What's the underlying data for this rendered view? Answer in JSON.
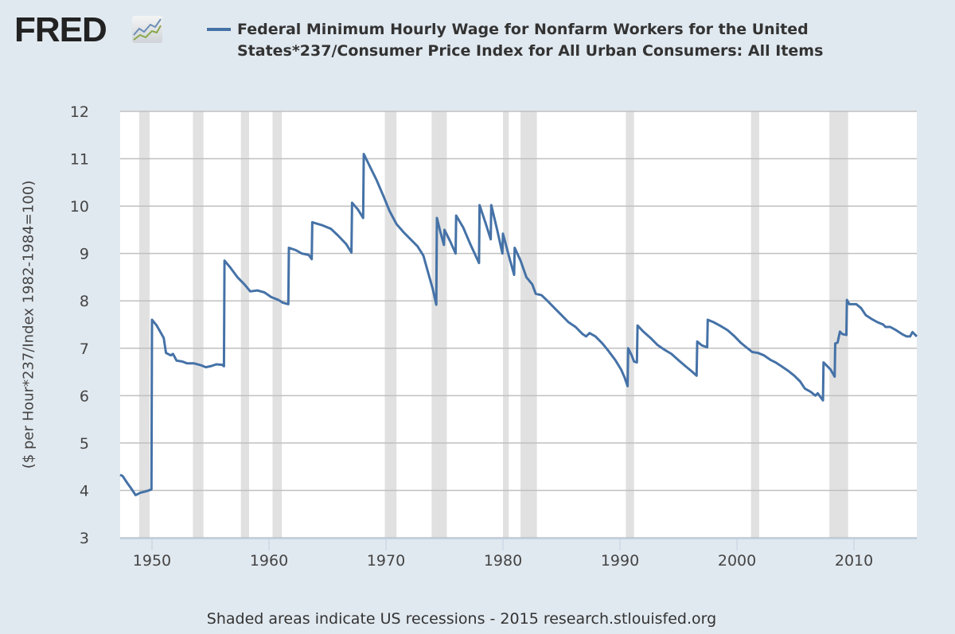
{
  "header": {
    "logo_text": "FRED",
    "title": "Federal Minimum Hourly Wage for Nonfarm Workers for the United States*237/Consumer Price Index for All Urban Consumers: All Items"
  },
  "footer": "Shaded areas indicate US recessions - 2015 research.stlouisfed.org",
  "colors": {
    "line": "#4572a7",
    "recession": "#e1e1e1",
    "grid": "#c0c0c0",
    "background": "#e1e9f0"
  },
  "chart_data": {
    "type": "line",
    "title": "Federal Minimum Hourly Wage for Nonfarm Workers for the United States*237/Consumer Price Index for All Urban Consumers: All Items",
    "xlabel": "",
    "ylabel": "($ per Hour*237/Index 1982-1984=100)",
    "xlim": [
      1947.28,
      2015.37
    ],
    "ylim": [
      3,
      12
    ],
    "yticks": [
      3,
      4,
      5,
      6,
      7,
      8,
      9,
      10,
      11,
      12
    ],
    "xticks": [
      1950,
      1960,
      1970,
      1980,
      1990,
      2000,
      2010
    ],
    "grid": true,
    "legend": "top",
    "recessions": [
      [
        1948.9,
        1949.8
      ],
      [
        1953.5,
        1954.4
      ],
      [
        1957.6,
        1958.3
      ],
      [
        1960.3,
        1961.1
      ],
      [
        1969.9,
        1970.9
      ],
      [
        1973.9,
        1975.2
      ],
      [
        1980.0,
        1980.5
      ],
      [
        1981.5,
        1982.9
      ],
      [
        1990.5,
        1991.2
      ],
      [
        2001.2,
        2001.9
      ],
      [
        2007.9,
        2009.5
      ]
    ],
    "series": [
      {
        "name": "Federal Minimum Hourly Wage for Nonfarm Workers for the United States*237/Consumer Price Index for All Urban Consumers: All Items",
        "points": [
          [
            1947.28,
            4.33
          ],
          [
            1947.5,
            4.3
          ],
          [
            1947.9,
            4.15
          ],
          [
            1948.2,
            4.05
          ],
          [
            1948.6,
            3.9
          ],
          [
            1949.0,
            3.95
          ],
          [
            1949.5,
            3.98
          ],
          [
            1949.95,
            4.02
          ],
          [
            1950.0,
            7.6
          ],
          [
            1950.4,
            7.48
          ],
          [
            1951.0,
            7.22
          ],
          [
            1951.2,
            6.9
          ],
          [
            1951.6,
            6.85
          ],
          [
            1951.8,
            6.88
          ],
          [
            1952.1,
            6.74
          ],
          [
            1952.6,
            6.72
          ],
          [
            1953.0,
            6.68
          ],
          [
            1953.6,
            6.68
          ],
          [
            1954.2,
            6.64
          ],
          [
            1954.6,
            6.6
          ],
          [
            1955.0,
            6.62
          ],
          [
            1955.5,
            6.66
          ],
          [
            1956.0,
            6.65
          ],
          [
            1956.15,
            6.62
          ],
          [
            1956.2,
            8.85
          ],
          [
            1956.7,
            8.7
          ],
          [
            1957.3,
            8.5
          ],
          [
            1957.9,
            8.35
          ],
          [
            1958.4,
            8.2
          ],
          [
            1959.0,
            8.22
          ],
          [
            1959.6,
            8.18
          ],
          [
            1960.2,
            8.08
          ],
          [
            1960.8,
            8.02
          ],
          [
            1961.2,
            7.96
          ],
          [
            1961.65,
            7.93
          ],
          [
            1961.7,
            9.12
          ],
          [
            1962.3,
            9.07
          ],
          [
            1962.8,
            9.0
          ],
          [
            1963.4,
            8.97
          ],
          [
            1963.65,
            8.88
          ],
          [
            1963.7,
            9.66
          ],
          [
            1964.5,
            9.6
          ],
          [
            1965.3,
            9.52
          ],
          [
            1965.9,
            9.38
          ],
          [
            1966.6,
            9.2
          ],
          [
            1967.05,
            9.02
          ],
          [
            1967.1,
            10.07
          ],
          [
            1967.6,
            9.93
          ],
          [
            1968.05,
            9.75
          ],
          [
            1968.1,
            11.1
          ],
          [
            1968.6,
            10.85
          ],
          [
            1969.2,
            10.55
          ],
          [
            1969.8,
            10.2
          ],
          [
            1970.3,
            9.9
          ],
          [
            1970.9,
            9.62
          ],
          [
            1971.5,
            9.45
          ],
          [
            1972.1,
            9.3
          ],
          [
            1972.7,
            9.15
          ],
          [
            1973.2,
            8.95
          ],
          [
            1973.6,
            8.6
          ],
          [
            1974.0,
            8.25
          ],
          [
            1974.3,
            7.92
          ],
          [
            1974.35,
            9.75
          ],
          [
            1974.65,
            9.45
          ],
          [
            1974.95,
            9.18
          ],
          [
            1975.0,
            9.5
          ],
          [
            1975.5,
            9.25
          ],
          [
            1975.95,
            9.0
          ],
          [
            1976.0,
            9.8
          ],
          [
            1976.6,
            9.55
          ],
          [
            1977.2,
            9.2
          ],
          [
            1977.95,
            8.8
          ],
          [
            1978.0,
            10.02
          ],
          [
            1978.5,
            9.65
          ],
          [
            1978.95,
            9.3
          ],
          [
            1979.0,
            10.02
          ],
          [
            1979.5,
            9.5
          ],
          [
            1979.95,
            9.0
          ],
          [
            1980.0,
            9.42
          ],
          [
            1980.5,
            8.95
          ],
          [
            1980.95,
            8.55
          ],
          [
            1981.0,
            9.12
          ],
          [
            1981.5,
            8.85
          ],
          [
            1982.0,
            8.5
          ],
          [
            1982.5,
            8.35
          ],
          [
            1982.8,
            8.15
          ],
          [
            1983.3,
            8.12
          ],
          [
            1983.8,
            8.0
          ],
          [
            1984.4,
            7.85
          ],
          [
            1985.0,
            7.7
          ],
          [
            1985.6,
            7.55
          ],
          [
            1986.2,
            7.45
          ],
          [
            1986.8,
            7.3
          ],
          [
            1987.1,
            7.25
          ],
          [
            1987.4,
            7.32
          ],
          [
            1987.9,
            7.25
          ],
          [
            1988.5,
            7.1
          ],
          [
            1989.0,
            6.95
          ],
          [
            1989.6,
            6.75
          ],
          [
            1990.1,
            6.55
          ],
          [
            1990.4,
            6.38
          ],
          [
            1990.65,
            6.2
          ],
          [
            1990.7,
            7.0
          ],
          [
            1991.0,
            6.85
          ],
          [
            1991.2,
            6.72
          ],
          [
            1991.45,
            6.7
          ],
          [
            1991.5,
            7.48
          ],
          [
            1992.0,
            7.35
          ],
          [
            1992.6,
            7.22
          ],
          [
            1993.2,
            7.07
          ],
          [
            1993.8,
            6.97
          ],
          [
            1994.4,
            6.88
          ],
          [
            1995.0,
            6.75
          ],
          [
            1995.6,
            6.62
          ],
          [
            1996.1,
            6.52
          ],
          [
            1996.55,
            6.42
          ],
          [
            1996.6,
            7.14
          ],
          [
            1997.0,
            7.06
          ],
          [
            1997.45,
            7.02
          ],
          [
            1997.5,
            7.6
          ],
          [
            1998.0,
            7.55
          ],
          [
            1998.6,
            7.47
          ],
          [
            1999.2,
            7.38
          ],
          [
            1999.8,
            7.25
          ],
          [
            2000.3,
            7.12
          ],
          [
            2000.8,
            7.02
          ],
          [
            2001.3,
            6.92
          ],
          [
            2001.8,
            6.9
          ],
          [
            2002.3,
            6.85
          ],
          [
            2002.9,
            6.75
          ],
          [
            2003.3,
            6.7
          ],
          [
            2003.8,
            6.62
          ],
          [
            2004.4,
            6.52
          ],
          [
            2004.9,
            6.42
          ],
          [
            2005.4,
            6.3
          ],
          [
            2005.8,
            6.15
          ],
          [
            2006.3,
            6.08
          ],
          [
            2006.7,
            6.0
          ],
          [
            2006.9,
            6.05
          ],
          [
            2007.35,
            5.9
          ],
          [
            2007.4,
            6.7
          ],
          [
            2008.0,
            6.55
          ],
          [
            2008.35,
            6.4
          ],
          [
            2008.4,
            7.1
          ],
          [
            2008.6,
            7.12
          ],
          [
            2008.8,
            7.35
          ],
          [
            2009.0,
            7.3
          ],
          [
            2009.35,
            7.28
          ],
          [
            2009.4,
            8.02
          ],
          [
            2009.6,
            7.93
          ],
          [
            2010.2,
            7.93
          ],
          [
            2010.6,
            7.85
          ],
          [
            2011.0,
            7.7
          ],
          [
            2011.5,
            7.62
          ],
          [
            2012.0,
            7.55
          ],
          [
            2012.5,
            7.5
          ],
          [
            2012.7,
            7.45
          ],
          [
            2013.1,
            7.45
          ],
          [
            2013.6,
            7.38
          ],
          [
            2014.1,
            7.3
          ],
          [
            2014.5,
            7.25
          ],
          [
            2014.8,
            7.25
          ],
          [
            2015.0,
            7.34
          ],
          [
            2015.37,
            7.25
          ]
        ]
      }
    ]
  }
}
